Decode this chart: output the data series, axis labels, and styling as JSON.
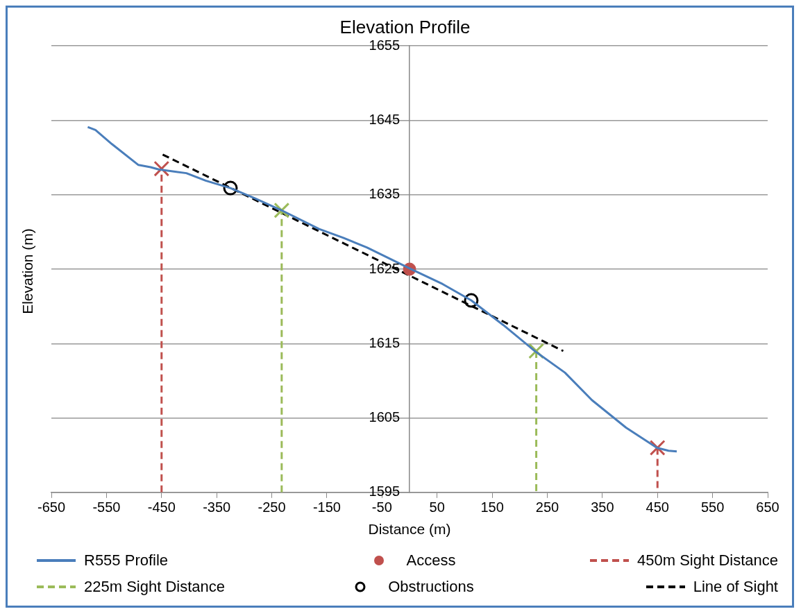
{
  "chart_data": {
    "type": "line",
    "title": "Elevation Profile",
    "xlabel": "Distance (m)",
    "ylabel": "Elevation (m)",
    "xlim": [
      -650,
      650
    ],
    "xticks": [
      -650,
      -550,
      -450,
      -350,
      -250,
      -150,
      -50,
      50,
      150,
      250,
      350,
      450,
      550,
      650
    ],
    "ylim": [
      1595,
      1655
    ],
    "yticks": [
      1595,
      1605,
      1615,
      1625,
      1635,
      1645,
      1655
    ],
    "grid": "y",
    "legend": "bottom",
    "series": [
      {
        "name": "R555 Profile",
        "color": "#4a7ebb",
        "line_style": "solid",
        "marker": "none",
        "x": [
          -584,
          -570,
          -540,
          -492,
          -470,
          -455,
          -405,
          -370,
          -325,
          -280,
          -232,
          -164,
          -120,
          -77,
          0,
          60,
          112,
          170,
          229,
          282,
          331,
          393,
          449,
          470,
          485
        ],
        "values": [
          1644.1,
          1643.7,
          1641.8,
          1639.0,
          1638.7,
          1638.4,
          1637.9,
          1636.9,
          1635.9,
          1634.5,
          1632.9,
          1630.4,
          1629.2,
          1627.9,
          1625.1,
          1623.0,
          1620.8,
          1617.5,
          1613.9,
          1611.1,
          1607.4,
          1603.7,
          1601.0,
          1600.6,
          1600.5
        ]
      },
      {
        "name": "Access",
        "type": "scatter",
        "color": "#c0504d",
        "marker": "circle",
        "x": [
          0
        ],
        "values": [
          1625
        ]
      },
      {
        "name": "450m Sight Distance",
        "type": "line",
        "color": "#c0504d",
        "line_style": "dashed",
        "marker": "none",
        "x": [
          -450,
          -450,
          0,
          450,
          450
        ],
        "values": [
          1595,
          1638.5,
          null,
          1601,
          1595
        ]
      },
      {
        "type": "scatter",
        "color": "#c0504d",
        "marker": "cross",
        "x": [
          -450,
          450
        ],
        "values": [
          1638.5,
          1601
        ]
      },
      {
        "name": "225m Sight Distance",
        "type": "line",
        "color": "#9bbb59",
        "line_style": "dashed",
        "marker": "none",
        "x": [
          -232,
          -232,
          0,
          230,
          230
        ],
        "values": [
          1595,
          1632.9,
          null,
          1614,
          1595
        ]
      },
      {
        "type": "scatter",
        "color": "#9bbb59",
        "marker": "cross",
        "x": [
          -232,
          230
        ],
        "values": [
          1632.9,
          1614
        ]
      },
      {
        "name": "Obstructions",
        "type": "scatter",
        "color": "#000000",
        "marker": "circle_open",
        "x": [
          -325,
          112
        ],
        "values": [
          1635.9,
          1620.8
        ]
      },
      {
        "name": "Line of Sight",
        "color": "#000000",
        "line_style": "dashed",
        "marker": "none",
        "x": [
          -448,
          279
        ],
        "values": [
          1640.4,
          1614.0
        ]
      }
    ]
  }
}
